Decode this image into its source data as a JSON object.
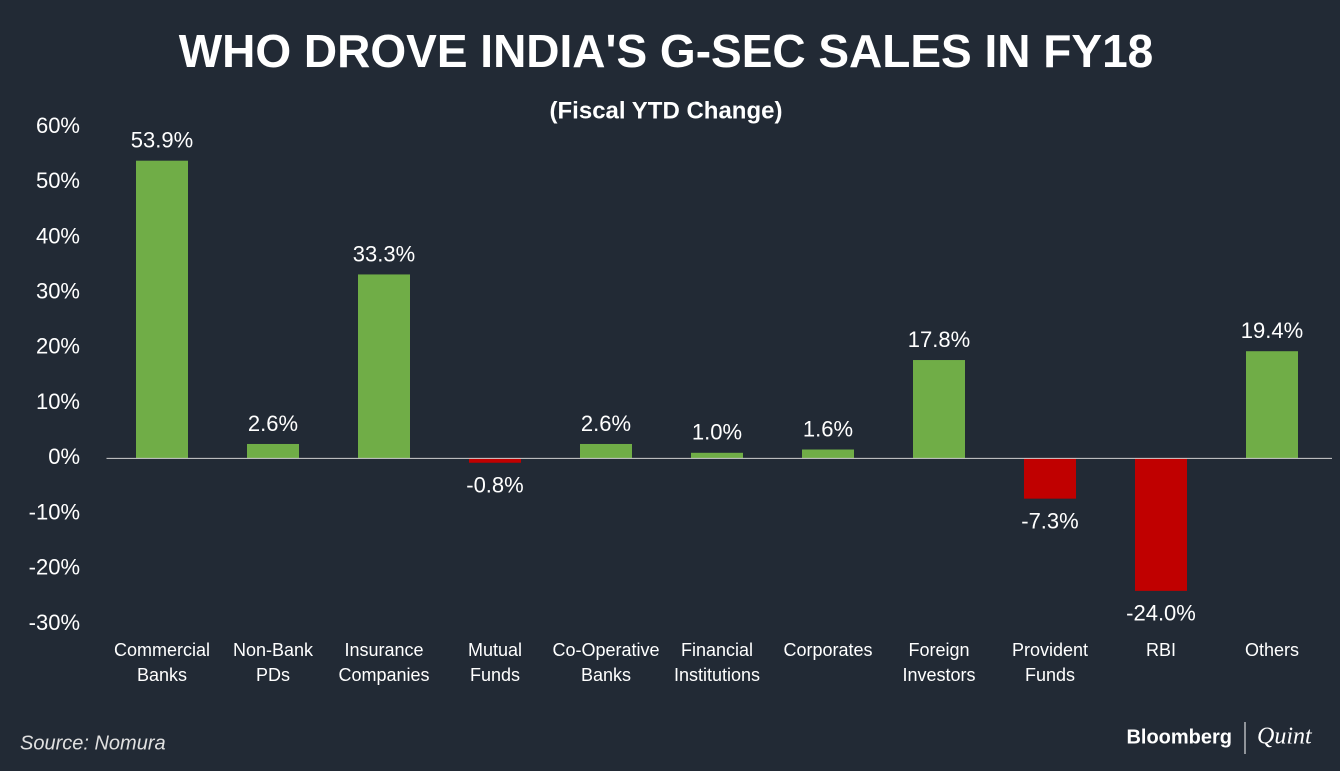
{
  "chart_data": {
    "type": "bar",
    "title": "WHO DROVE INDIA'S G-SEC SALES IN FY18",
    "subtitle": "(Fiscal YTD Change)",
    "categories": [
      [
        "Commercial",
        "Banks"
      ],
      [
        "Non-Bank",
        "PDs"
      ],
      [
        "Insurance",
        "Companies"
      ],
      [
        "Mutual",
        "Funds"
      ],
      [
        "Co-Operative",
        "Banks"
      ],
      [
        "Financial",
        "Institutions"
      ],
      [
        "Corporates"
      ],
      [
        "Foreign",
        "Investors"
      ],
      [
        "Provident",
        "Funds"
      ],
      [
        "RBI"
      ],
      [
        "Others"
      ]
    ],
    "values": [
      53.9,
      2.6,
      33.3,
      -0.8,
      2.6,
      1.0,
      1.6,
      17.8,
      -7.3,
      -24.0,
      19.4
    ],
    "value_labels": [
      "53.9%",
      "2.6%",
      "33.3%",
      "-0.8%",
      "2.6%",
      "1.0%",
      "1.6%",
      "17.8%",
      "-7.3%",
      "-24.0%",
      "19.4%"
    ],
    "positive_color": "#70ad47",
    "negative_color": "#c00000",
    "ylim": [
      -30,
      60
    ],
    "yticks": [
      {
        "value": 60,
        "label": "60%"
      },
      {
        "value": 50,
        "label": "50%"
      },
      {
        "value": 40,
        "label": "40%"
      },
      {
        "value": 30,
        "label": "30%"
      },
      {
        "value": 20,
        "label": "20%"
      },
      {
        "value": 10,
        "label": "10%"
      },
      {
        "value": 0,
        "label": "0%"
      },
      {
        "value": -10,
        "label": "-10%"
      },
      {
        "value": -20,
        "label": "-20%"
      },
      {
        "value": -30,
        "label": "-30%"
      }
    ],
    "grid": false,
    "source": "Source: Nomura",
    "logo": [
      "Bloomberg",
      "Quint"
    ]
  }
}
